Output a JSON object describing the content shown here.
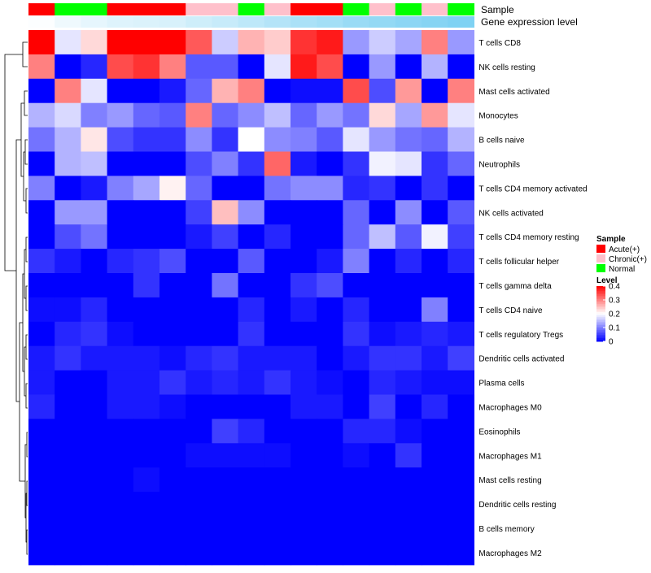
{
  "chart_data": {
    "type": "heatmap",
    "title": "",
    "annotation_labels": {
      "sample": "Sample",
      "expression": "Gene expression level"
    },
    "sample_annotation": [
      "Acute(+)",
      "Normal",
      "Normal",
      "Acute(+)",
      "Acute(+)",
      "Acute(+)",
      "Chronic(+)",
      "Chronic(+)",
      "Normal",
      "Chronic(+)",
      "Acute(+)",
      "Acute(+)",
      "Normal",
      "Chronic(+)",
      "Normal",
      "Chronic(+)",
      "Normal"
    ],
    "expression_annotation": [
      0.02,
      0.1,
      0.15,
      0.2,
      0.22,
      0.24,
      0.3,
      0.34,
      0.4,
      0.46,
      0.52,
      0.56,
      0.62,
      0.66,
      0.7,
      0.74,
      0.78
    ],
    "rows": [
      "T cells CD8",
      "NK cells resting",
      "Mast cells activated",
      "Monocytes",
      "B cells naive",
      "Neutrophils",
      "T cells CD4 memory activated",
      "NK cells activated",
      "T cells CD4 memory resting",
      "T cells follicular helper",
      "T cells gamma delta",
      "T cells CD4 naive",
      "T cells regulatory  Tregs",
      "Dendritic cells activated",
      "Plasma cells",
      "Macrophages M0",
      "Eosinophils",
      "Macrophages M1",
      "Mast cells resting",
      "Dendritic cells resting",
      "B cells memory",
      "Macrophages M2"
    ],
    "values": [
      [
        0.4,
        0.18,
        0.23,
        0.4,
        0.4,
        0.4,
        0.33,
        0.16,
        0.26,
        0.24,
        0.36,
        0.38,
        0.12,
        0.16,
        0.13,
        0.3,
        0.12
      ],
      [
        0.3,
        0.0,
        0.03,
        0.34,
        0.36,
        0.3,
        0.07,
        0.07,
        0.0,
        0.18,
        0.38,
        0.34,
        0.0,
        0.12,
        0.0,
        0.14,
        0.0
      ],
      [
        0.0,
        0.3,
        0.18,
        0.0,
        0.0,
        0.02,
        0.08,
        0.26,
        0.3,
        0.0,
        0.01,
        0.01,
        0.34,
        0.06,
        0.28,
        0.0,
        0.3
      ],
      [
        0.14,
        0.17,
        0.1,
        0.12,
        0.08,
        0.07,
        0.3,
        0.08,
        0.11,
        0.15,
        0.08,
        0.12,
        0.09,
        0.23,
        0.13,
        0.28,
        0.18
      ],
      [
        0.09,
        0.14,
        0.22,
        0.06,
        0.04,
        0.04,
        0.11,
        0.04,
        0.2,
        0.11,
        0.1,
        0.07,
        0.18,
        0.12,
        0.09,
        0.08,
        0.14
      ],
      [
        0.0,
        0.14,
        0.15,
        0.0,
        0.0,
        0.0,
        0.06,
        0.1,
        0.04,
        0.32,
        0.02,
        0.0,
        0.04,
        0.19,
        0.18,
        0.04,
        0.08
      ],
      [
        0.1,
        0.0,
        0.02,
        0.1,
        0.13,
        0.21,
        0.08,
        0.0,
        0.0,
        0.09,
        0.11,
        0.11,
        0.03,
        0.04,
        0.0,
        0.04,
        0.0
      ],
      [
        0.0,
        0.12,
        0.12,
        0.0,
        0.0,
        0.0,
        0.05,
        0.25,
        0.11,
        0.0,
        0.0,
        0.0,
        0.08,
        0.0,
        0.11,
        0.0,
        0.07
      ],
      [
        0.0,
        0.06,
        0.09,
        0.0,
        0.0,
        0.0,
        0.02,
        0.05,
        0.0,
        0.03,
        0.0,
        0.0,
        0.08,
        0.15,
        0.07,
        0.19,
        0.05
      ],
      [
        0.04,
        0.02,
        0.0,
        0.03,
        0.04,
        0.06,
        0.0,
        0.0,
        0.07,
        0.0,
        0.0,
        0.02,
        0.1,
        0.0,
        0.03,
        0.0,
        0.03
      ],
      [
        0.0,
        0.0,
        0.0,
        0.0,
        0.04,
        0.0,
        0.0,
        0.09,
        0.0,
        0.0,
        0.04,
        0.06,
        0.0,
        0.0,
        0.0,
        0.0,
        0.0
      ],
      [
        0.01,
        0.01,
        0.03,
        0.0,
        0.0,
        0.0,
        0.0,
        0.0,
        0.03,
        0.0,
        0.02,
        0.0,
        0.03,
        0.0,
        0.0,
        0.1,
        0.0
      ],
      [
        0.0,
        0.03,
        0.04,
        0.01,
        0.0,
        0.0,
        0.0,
        0.0,
        0.04,
        0.0,
        0.0,
        0.0,
        0.04,
        0.01,
        0.02,
        0.03,
        0.02
      ],
      [
        0.02,
        0.04,
        0.02,
        0.02,
        0.02,
        0.01,
        0.03,
        0.04,
        0.02,
        0.02,
        0.02,
        0.0,
        0.02,
        0.04,
        0.04,
        0.02,
        0.05
      ],
      [
        0.02,
        0.0,
        0.0,
        0.02,
        0.02,
        0.04,
        0.02,
        0.03,
        0.02,
        0.04,
        0.02,
        0.01,
        0.0,
        0.03,
        0.02,
        0.01,
        0.01
      ],
      [
        0.03,
        0.0,
        0.0,
        0.02,
        0.02,
        0.01,
        0.0,
        0.0,
        0.0,
        0.0,
        0.02,
        0.02,
        0.0,
        0.05,
        0.0,
        0.03,
        0.0
      ],
      [
        0.0,
        0.0,
        0.0,
        0.0,
        0.0,
        0.0,
        0.0,
        0.05,
        0.03,
        0.0,
        0.0,
        0.0,
        0.03,
        0.03,
        0.01,
        0.0,
        0.0
      ],
      [
        0.0,
        0.0,
        0.0,
        0.0,
        0.0,
        0.0,
        0.01,
        0.01,
        0.01,
        0.01,
        0.0,
        0.0,
        0.01,
        0.0,
        0.04,
        0.0,
        0.0
      ],
      [
        0.0,
        0.0,
        0.0,
        0.0,
        0.01,
        0.0,
        0.0,
        0.0,
        0.0,
        0.0,
        0.0,
        0.0,
        0.0,
        0.0,
        0.0,
        0.0,
        0.0
      ],
      [
        0.0,
        0.0,
        0.0,
        0.0,
        0.0,
        0.0,
        0.0,
        0.0,
        0.0,
        0.0,
        0.0,
        0.0,
        0.0,
        0.0,
        0.0,
        0.0,
        0.0
      ],
      [
        0.0,
        0.0,
        0.0,
        0.0,
        0.0,
        0.0,
        0.0,
        0.0,
        0.0,
        0.0,
        0.0,
        0.0,
        0.0,
        0.0,
        0.0,
        0.0,
        0.0
      ],
      [
        0.0,
        0.0,
        0.0,
        0.0,
        0.0,
        0.0,
        0.0,
        0.0,
        0.0,
        0.0,
        0.0,
        0.0,
        0.0,
        0.0,
        0.0,
        0.0,
        0.0
      ]
    ],
    "color_range": [
      0,
      0.4
    ],
    "colors": {
      "low": "#0000ff",
      "mid": "#ffffff",
      "high": "#ff0000"
    },
    "legend_sample": {
      "title": "Sample",
      "entries": [
        {
          "label": "Acute(+)",
          "color": "#ff0000"
        },
        {
          "label": "Chronic(+)",
          "color": "#ffc0cb"
        },
        {
          "label": "Normal",
          "color": "#00ff00"
        }
      ]
    },
    "legend_level": {
      "title": "Level",
      "ticks": [
        "0.4",
        "0.3",
        "0.2",
        "0.1",
        "0"
      ],
      "tick_values": [
        0.4,
        0.3,
        0.2,
        0.1,
        0
      ]
    },
    "expression_colors": {
      "low": "#ffffff",
      "high": "#5bc5ef"
    }
  }
}
